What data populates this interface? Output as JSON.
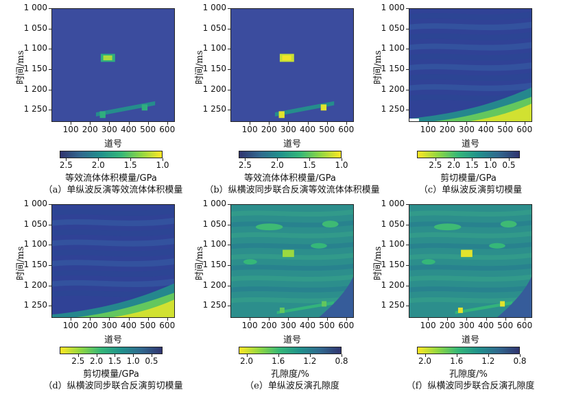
{
  "colors": {
    "viridis_low": "#fde725",
    "viridis_mid": "#21918c",
    "viridis_high": "#30346f",
    "background": "#3a4ba0",
    "shear_top": "#2f3f97"
  },
  "chart_data": [
    {
      "type": "heatmap",
      "id": "a",
      "ylabel": "时间/ms",
      "xlabel": "道号",
      "yticks": [
        "1 000",
        "1 050",
        "1 100",
        "1 150",
        "1 200",
        "1 250"
      ],
      "xticks": [
        "100",
        "200",
        "300",
        "400",
        "500",
        "600"
      ],
      "ylim": [
        1000,
        1280
      ],
      "xlim": [
        0,
        640
      ],
      "colorbar_label": "等效流体体积模量/GPa",
      "colorbar_ticks": [
        "2.5",
        "2.0",
        "1.5",
        "1.0"
      ],
      "colorbar_range": [
        2.6,
        1.0
      ],
      "colorbar_direction": "high-to-low left-to-right (yellow right)",
      "caption": "（a）单纵波反演等效流体体积模量"
    },
    {
      "type": "heatmap",
      "id": "b",
      "ylabel": "时间/ms",
      "xlabel": "道号",
      "yticks": [
        "1 000",
        "1 050",
        "1 100",
        "1 150",
        "1 200",
        "1 250"
      ],
      "xticks": [
        "100",
        "200",
        "300",
        "400",
        "500",
        "600"
      ],
      "ylim": [
        1000,
        1280
      ],
      "xlim": [
        0,
        640
      ],
      "colorbar_label": "等效流体体积模量/GPa",
      "colorbar_ticks": [
        "2.5",
        "2.0",
        "1.5",
        "1.0"
      ],
      "colorbar_range": [
        2.6,
        1.0
      ],
      "colorbar_direction": "yellow right",
      "caption": "（b）纵横波同步联合反演等效流体体积模量"
    },
    {
      "type": "heatmap",
      "id": "c",
      "ylabel": "时间/ms",
      "xlabel": "道号",
      "yticks": [
        "1 000",
        "1 050",
        "1 100",
        "1 150",
        "1 200",
        "1 250"
      ],
      "xticks": [
        "100",
        "200",
        "300",
        "400",
        "500",
        "600"
      ],
      "ylim": [
        1000,
        1280
      ],
      "xlim": [
        0,
        640
      ],
      "colorbar_label": "剪切模量/GPa",
      "colorbar_ticks": [
        "2.5",
        "2.0",
        "1.5",
        "1.0",
        "0.5"
      ],
      "colorbar_range": [
        3.0,
        0.2
      ],
      "colorbar_direction": "yellow left",
      "caption": "（c）单纵波反演剪切模量"
    },
    {
      "type": "heatmap",
      "id": "d",
      "ylabel": "时间/ms",
      "xlabel": "道号",
      "yticks": [
        "1 000",
        "1 050",
        "1 100",
        "1 150",
        "1 200",
        "1 250"
      ],
      "xticks": [
        "100",
        "200",
        "300",
        "400",
        "500",
        "600"
      ],
      "ylim": [
        1000,
        1280
      ],
      "xlim": [
        0,
        640
      ],
      "colorbar_label": "剪切模量/GPa",
      "colorbar_ticks": [
        "2.5",
        "2.0",
        "1.5",
        "1.0",
        "0.5"
      ],
      "colorbar_range": [
        3.0,
        0.2
      ],
      "colorbar_direction": "yellow left",
      "caption": "（d）纵横波同步联合反演剪切模量"
    },
    {
      "type": "heatmap",
      "id": "e",
      "ylabel": "时间/ms",
      "xlabel": "道号",
      "yticks": [
        "1 000",
        "1 050",
        "1 100",
        "1 150",
        "1 200",
        "1 250"
      ],
      "xticks": [
        "100",
        "200",
        "300",
        "400",
        "500",
        "600"
      ],
      "ylim": [
        1000,
        1280
      ],
      "xlim": [
        0,
        640
      ],
      "colorbar_label": "孔隙度/%",
      "colorbar_ticks": [
        "2.0",
        "1.6",
        "1.2",
        "0.8"
      ],
      "colorbar_range": [
        2.1,
        0.8
      ],
      "colorbar_direction": "yellow left",
      "caption": "（e）单纵波反演孔隙度"
    },
    {
      "type": "heatmap",
      "id": "f",
      "ylabel": "时间/ms",
      "xlabel": "道号",
      "yticks": [
        "1 000",
        "1 050",
        "1 100",
        "1 150",
        "1 200",
        "1 250"
      ],
      "xticks": [
        "100",
        "200",
        "300",
        "400",
        "500",
        "600"
      ],
      "ylim": [
        1000,
        1280
      ],
      "xlim": [
        0,
        640
      ],
      "colorbar_label": "孔隙度/%",
      "colorbar_ticks": [
        "2.0",
        "1.6",
        "1.2",
        "0.8"
      ],
      "colorbar_range": [
        2.1,
        0.8
      ],
      "colorbar_direction": "yellow left",
      "caption": "（f）纵横波同步联合反演孔隙度"
    }
  ]
}
